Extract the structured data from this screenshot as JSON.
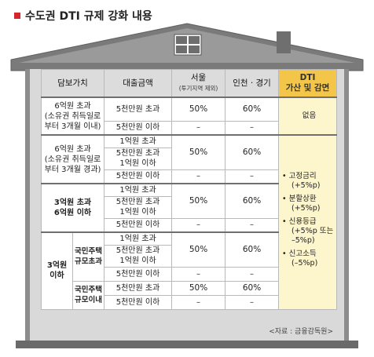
{
  "title": "수도권 DTI 규제 강화 내용",
  "source": "<자료 : 금융감독원>",
  "colors": {
    "accent": "#d4262b",
    "dti_header": "#f3c64a",
    "dti_cell": "#fdf5cc",
    "header": "#dcdcdc",
    "house_wall": "#8c8c8c",
    "roof": "#7b7b7b"
  },
  "headers": {
    "collateral": "담보가치",
    "loan": "대출금액",
    "seoul": "서울",
    "seoul_sub": "(투기지역 제외)",
    "incheon": "인천 · 경기",
    "dti_line1": "DTI",
    "dti_line2": "가산 및 감면"
  },
  "groups": {
    "g1": {
      "line1": "6억원 초과",
      "line2": "(소유권 취득일로",
      "line3": "부터 3개월 이내)"
    },
    "g2": {
      "line1": "6억원 초과",
      "line2": "(소유권 취득일로",
      "line3": "부터 3개월 경과)"
    },
    "g3": {
      "line1": "3억원 초과",
      "line2": "6억원 이하"
    },
    "g4": {
      "line1": "3억원",
      "line2": "이하"
    },
    "g4a": {
      "line1": "국민주택",
      "line2": "규모초과"
    },
    "g4b": {
      "line1": "국민주택",
      "line2": "규모이내"
    }
  },
  "loan_labels": {
    "over50": "5천만원 초과",
    "under50": "5천만원 이하",
    "over100": "1억원 초과",
    "mid_a": "5천만원 초과",
    "mid_b": "1억원 이하"
  },
  "values": {
    "seoul_50": "50%",
    "inch_60": "60%",
    "dash": "–"
  },
  "dti": {
    "none": "없음",
    "items": [
      {
        "label": "고정금리",
        "sub": "(+5%p)"
      },
      {
        "label": "분할상환",
        "sub": "(+5%p)"
      },
      {
        "label": "신용등급",
        "sub": "(+5%p 또는",
        "sub2": "–5%p)"
      },
      {
        "label": "신고소득",
        "sub": "(–5%p)"
      }
    ]
  }
}
